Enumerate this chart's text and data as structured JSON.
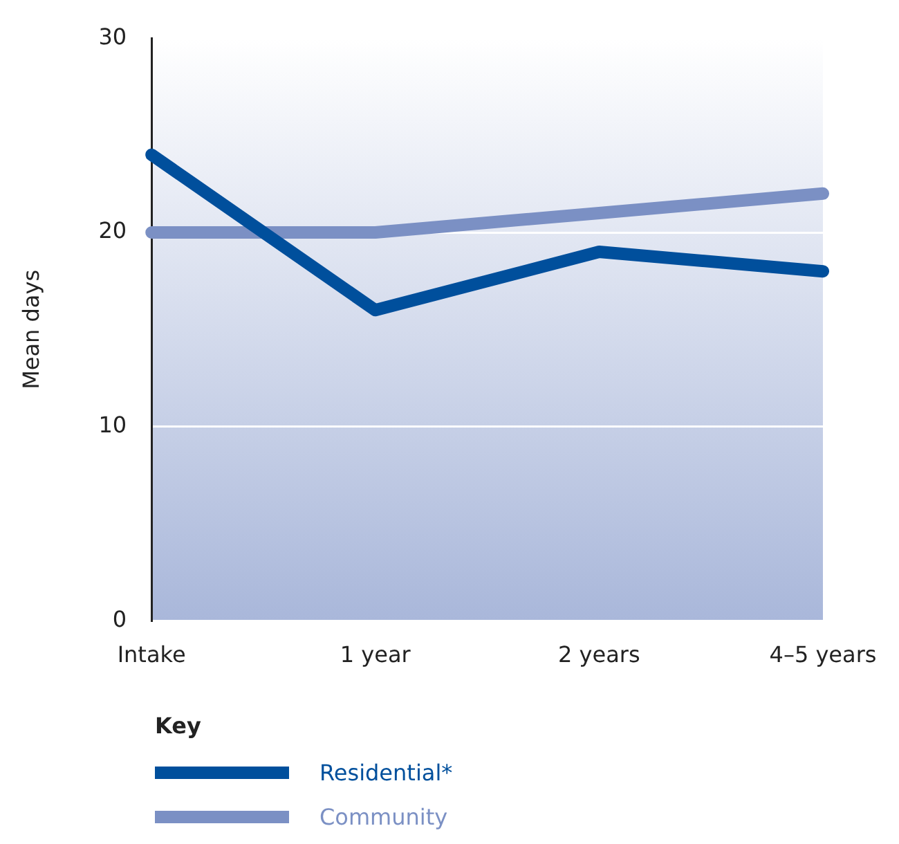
{
  "chart_data": {
    "type": "line",
    "ylabel": "Mean days",
    "legend_title": "Key",
    "legend": "bottom left",
    "grid": "y",
    "marker": "none",
    "line_style": "solid",
    "categories": [
      "Intake",
      "1 year",
      "2 years",
      "4–5 years"
    ],
    "ylim": [
      0,
      30
    ],
    "yticks": [
      0,
      10,
      20,
      30
    ],
    "series": [
      {
        "name": "Residential*",
        "color": "#004f9c",
        "values": [
          24,
          16,
          19,
          18
        ]
      },
      {
        "name": "Community",
        "color": "#7b90c4",
        "values": [
          20,
          20,
          21,
          22
        ]
      }
    ]
  }
}
